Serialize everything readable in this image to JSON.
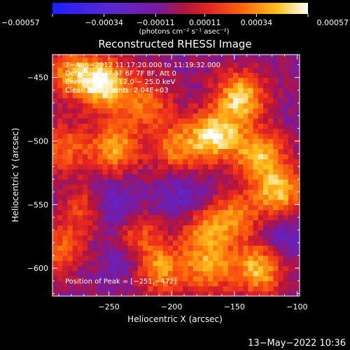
{
  "chart_data": {
    "type": "heatmap",
    "title": "Reconstructed RHESSI Image",
    "xlabel": "Heliocentric X (arcsec)",
    "ylabel": "Heliocentric Y (arcsec)",
    "xlim": [
      -295,
      -98
    ],
    "ylim": [
      -622,
      -432
    ],
    "x_ticks": [
      {
        "value": -250,
        "label": "−250"
      },
      {
        "value": -200,
        "label": "−200"
      },
      {
        "value": -150,
        "label": "−150"
      },
      {
        "value": -100,
        "label": "−100"
      }
    ],
    "y_ticks": [
      {
        "value": -450,
        "label": "−450"
      },
      {
        "value": -500,
        "label": "−500"
      },
      {
        "value": -550,
        "label": "−550"
      },
      {
        "value": -600,
        "label": "−600"
      }
    ],
    "colorbar": {
      "min": -0.00057,
      "max": 0.00057,
      "ticks": [
        {
          "value": -0.00057,
          "label": "−0.00057"
        },
        {
          "value": -0.00034,
          "label": "−0.00034"
        },
        {
          "value": -0.00011,
          "label": "−0.00011"
        },
        {
          "value": 0.00011,
          "label": "0.00011"
        },
        {
          "value": 0.00034,
          "label": "0.00034"
        },
        {
          "value": 0.00057,
          "label": "0.00057"
        }
      ],
      "unit_label": "(photons cm⁻² s⁻¹ asec⁻²)",
      "colormap": "blue-purple-red-orange-yellow-white"
    },
    "grid": false,
    "peak": {
      "x": -251,
      "y": -472
    },
    "hot_regions_approx": [
      {
        "x": -255,
        "y": -455,
        "level": 0.95
      },
      {
        "x": -280,
        "y": -445,
        "level": 0.6
      },
      {
        "x": -245,
        "y": -505,
        "level": 0.7
      },
      {
        "x": -220,
        "y": -470,
        "level": 0.55
      },
      {
        "x": -195,
        "y": -505,
        "level": 0.6
      },
      {
        "x": -165,
        "y": -495,
        "level": 0.9
      },
      {
        "x": -145,
        "y": -465,
        "level": 0.85
      },
      {
        "x": -130,
        "y": -510,
        "level": 0.75
      },
      {
        "x": -115,
        "y": -540,
        "level": 0.8
      },
      {
        "x": -150,
        "y": -560,
        "level": 0.55
      },
      {
        "x": -230,
        "y": -575,
        "level": 0.6
      },
      {
        "x": -265,
        "y": -555,
        "level": 0.6
      },
      {
        "x": -210,
        "y": -600,
        "level": 0.7
      },
      {
        "x": -170,
        "y": -600,
        "level": 0.65
      },
      {
        "x": -130,
        "y": -600,
        "level": 0.8
      },
      {
        "x": -175,
        "y": -570,
        "level": 0.55
      },
      {
        "x": -285,
        "y": -505,
        "level": 0.5
      },
      {
        "x": -290,
        "y": -585,
        "level": 0.5
      }
    ],
    "cold_regions_approx": [
      {
        "x": -250,
        "y": -555,
        "level": -0.6
      },
      {
        "x": -235,
        "y": -590,
        "level": -0.4
      },
      {
        "x": -190,
        "y": -545,
        "level": -0.3
      },
      {
        "x": -110,
        "y": -575,
        "level": -0.3
      }
    ]
  },
  "info_lines": [
    "7−Aug−2012 11:17:20.000 to 11:19:32.000",
    "Detectors: 3F 5F 6F 7F 8F, Att 0",
    "Energy Range: 12.0 − 25.0 keV",
    "Clean    Total counts: 2.04E+03"
  ],
  "peak_label": "Position of Peak = [−251,−472]",
  "footer_timestamp": "13−May−2022 10:36"
}
